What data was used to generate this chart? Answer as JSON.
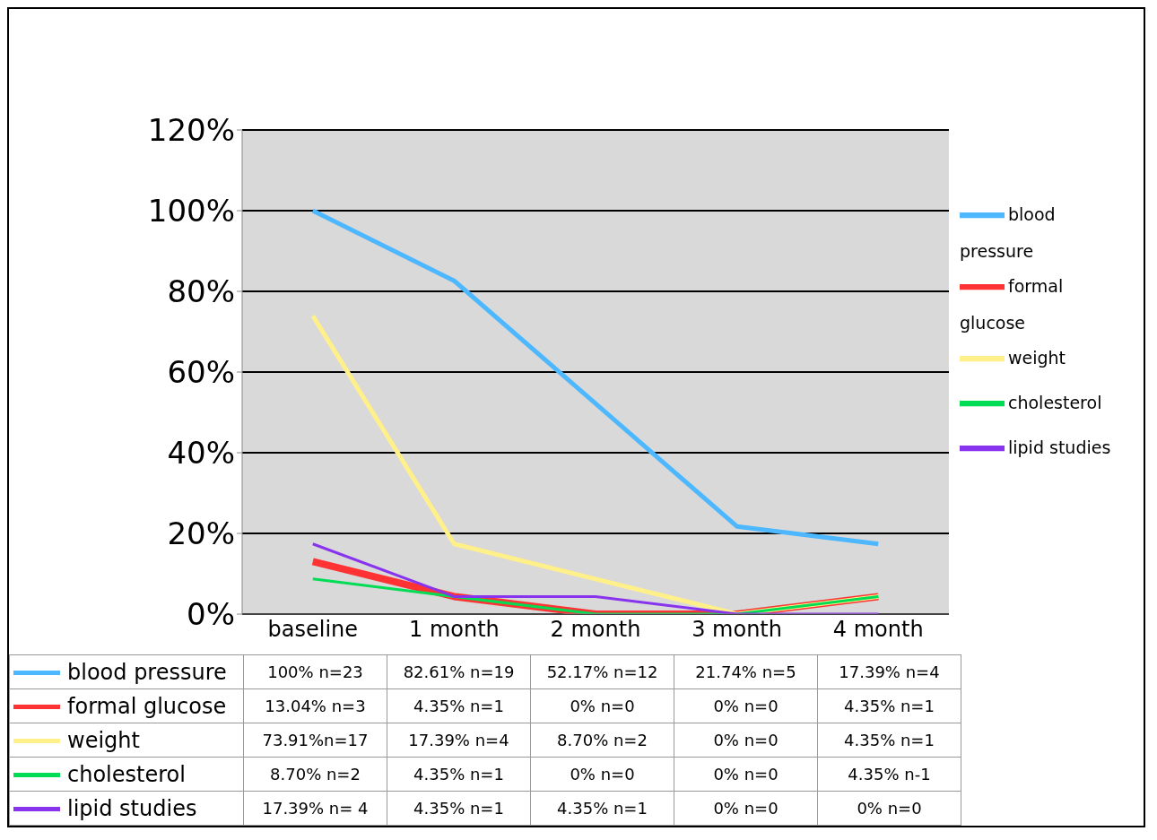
{
  "chart_data": {
    "type": "line",
    "categories": [
      "baseline",
      "1 month",
      "2 month",
      "3 month",
      "4 month"
    ],
    "series": [
      {
        "name": "blood pressure",
        "color": "#4db8ff",
        "values": [
          100,
          82.61,
          52.17,
          21.74,
          17.39
        ],
        "value_labels": [
          "100% n=23",
          "82.61% n=19",
          "52.17% n=12",
          "21.74% n=5",
          "17.39% n=4"
        ]
      },
      {
        "name": "formal glucose",
        "color": "#ff3333",
        "values": [
          13.04,
          4.35,
          0,
          0,
          4.35
        ],
        "value_labels": [
          "13.04% n=3",
          "4.35% n=1",
          "0% n=0",
          "0% n=0",
          "4.35% n=1"
        ]
      },
      {
        "name": "weight",
        "color": "#fff08a",
        "values": [
          73.91,
          17.39,
          8.7,
          0,
          4.35
        ],
        "value_labels": [
          "73.91%n=17",
          "17.39% n=4",
          "8.70% n=2",
          "0% n=0",
          "4.35% n=1"
        ]
      },
      {
        "name": "cholesterol",
        "color": "#00dd55",
        "values": [
          8.7,
          4.35,
          0,
          0,
          4.35
        ],
        "value_labels": [
          "8.70% n=2",
          "4.35% n=1",
          "0% n=0",
          "0% n=0",
          "4.35% n-1"
        ]
      },
      {
        "name": "lipid studies",
        "color": "#8833ee",
        "values": [
          17.39,
          4.35,
          4.35,
          0,
          0
        ],
        "value_labels": [
          "17.39% n= 4",
          "4.35% n=1",
          "4.35% n=1",
          "0% n=0",
          "0% n=0"
        ]
      }
    ],
    "ylim": [
      0,
      120
    ],
    "yticks": [
      {
        "value": 0,
        "label": "0%"
      },
      {
        "value": 20,
        "label": "20%"
      },
      {
        "value": 40,
        "label": "40%"
      },
      {
        "value": 60,
        "label": "60%"
      },
      {
        "value": 80,
        "label": "80%"
      },
      {
        "value": 100,
        "label": "100%"
      },
      {
        "value": 120,
        "label": "120%"
      }
    ],
    "grid": "y",
    "legend": "right"
  }
}
